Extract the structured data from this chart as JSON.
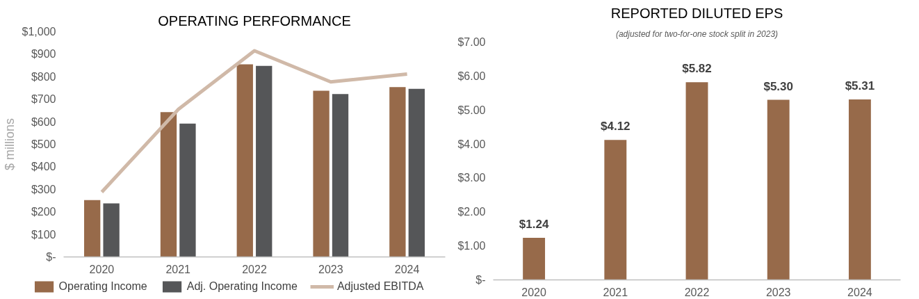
{
  "chart_data": [
    {
      "type": "bar",
      "title": "OPERATING PERFORMANCE",
      "ylabel": "$ millions",
      "categories": [
        "2020",
        "2021",
        "2022",
        "2023",
        "2024"
      ],
      "series": [
        {
          "name": "Operating Income",
          "color": "#976a4a",
          "values": [
            252,
            643,
            855,
            738,
            754
          ]
        },
        {
          "name": "Adj. Operating Income",
          "color": "#555658",
          "values": [
            238,
            592,
            848,
            723,
            746
          ]
        },
        {
          "name": "Adjusted EBITDA",
          "type": "line",
          "color": "#d0b9a8",
          "values": [
            288,
            654,
            915,
            777,
            812
          ]
        }
      ],
      "ylim": [
        0,
        1000
      ],
      "yticks": [
        {
          "value": 0,
          "label": "$-"
        },
        {
          "value": 100,
          "label": "$100"
        },
        {
          "value": 200,
          "label": "$200"
        },
        {
          "value": 300,
          "label": "$300"
        },
        {
          "value": 400,
          "label": "$400"
        },
        {
          "value": 500,
          "label": "$500"
        },
        {
          "value": 600,
          "label": "$600"
        },
        {
          "value": 700,
          "label": "$700"
        },
        {
          "value": 800,
          "label": "$800"
        },
        {
          "value": 900,
          "label": "$900"
        },
        {
          "value": 1000,
          "label": "$1,000"
        }
      ],
      "grid": false,
      "legend": "bottom"
    },
    {
      "type": "bar",
      "title": "REPORTED DILUTED EPS",
      "subtitle": "(adjusted for two-for-one stock split in 2023)",
      "categories": [
        "2020",
        "2021",
        "2022",
        "2023",
        "2024"
      ],
      "series": [
        {
          "color": "#976a4a",
          "values": [
            1.24,
            4.12,
            5.82,
            5.3,
            5.31
          ]
        }
      ],
      "value_labels": [
        "$1.24",
        "$4.12",
        "$5.82",
        "$5.30",
        "$5.31"
      ],
      "ylim": [
        0,
        7
      ],
      "yticks": [
        {
          "value": 0,
          "label": "$-"
        },
        {
          "value": 1,
          "label": "$1.00"
        },
        {
          "value": 2,
          "label": "$2.00"
        },
        {
          "value": 3,
          "label": "$3.00"
        },
        {
          "value": 4,
          "label": "$4.00"
        },
        {
          "value": 5,
          "label": "$5.00"
        },
        {
          "value": 6,
          "label": "$6.00"
        },
        {
          "value": 7,
          "label": "$7.00"
        }
      ],
      "grid": false,
      "legend": false
    }
  ]
}
